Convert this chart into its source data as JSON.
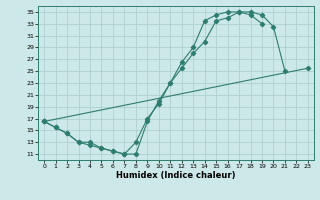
{
  "xlabel": "Humidex (Indice chaleur)",
  "bg_color": "#cce8e8",
  "line_color": "#2e7d6e",
  "grid_color": "#aacccc",
  "xlim": [
    -0.5,
    23.5
  ],
  "ylim": [
    10.0,
    36.0
  ],
  "xticks": [
    0,
    1,
    2,
    3,
    4,
    5,
    6,
    7,
    8,
    9,
    10,
    11,
    12,
    13,
    14,
    15,
    16,
    17,
    18,
    19,
    20,
    21,
    22,
    23
  ],
  "yticks": [
    11,
    13,
    15,
    17,
    19,
    21,
    23,
    25,
    27,
    29,
    31,
    33,
    35
  ],
  "line1_x": [
    0,
    1,
    2,
    3,
    4,
    5,
    6,
    7,
    8,
    9,
    10,
    11,
    12,
    13,
    14,
    15,
    16,
    17,
    18,
    19,
    20,
    21
  ],
  "line1_y": [
    16.5,
    15.5,
    14.5,
    13.0,
    13.0,
    12.0,
    11.5,
    11.0,
    13.0,
    17.0,
    19.5,
    23.0,
    25.5,
    28.0,
    30.0,
    33.5,
    34.0,
    35.0,
    35.0,
    34.5,
    32.5,
    25.0
  ],
  "line2_x": [
    0,
    1,
    2,
    3,
    4,
    5,
    6,
    7,
    8,
    9,
    10,
    11,
    12,
    13,
    14,
    15,
    16,
    17,
    18,
    19
  ],
  "line2_y": [
    16.5,
    15.5,
    14.5,
    13.0,
    12.5,
    12.0,
    11.5,
    11.0,
    11.0,
    16.5,
    20.0,
    23.0,
    26.5,
    29.0,
    33.5,
    34.5,
    35.0,
    35.0,
    34.5,
    33.0
  ],
  "line3_x": [
    0,
    23
  ],
  "line3_y": [
    16.5,
    25.5
  ]
}
